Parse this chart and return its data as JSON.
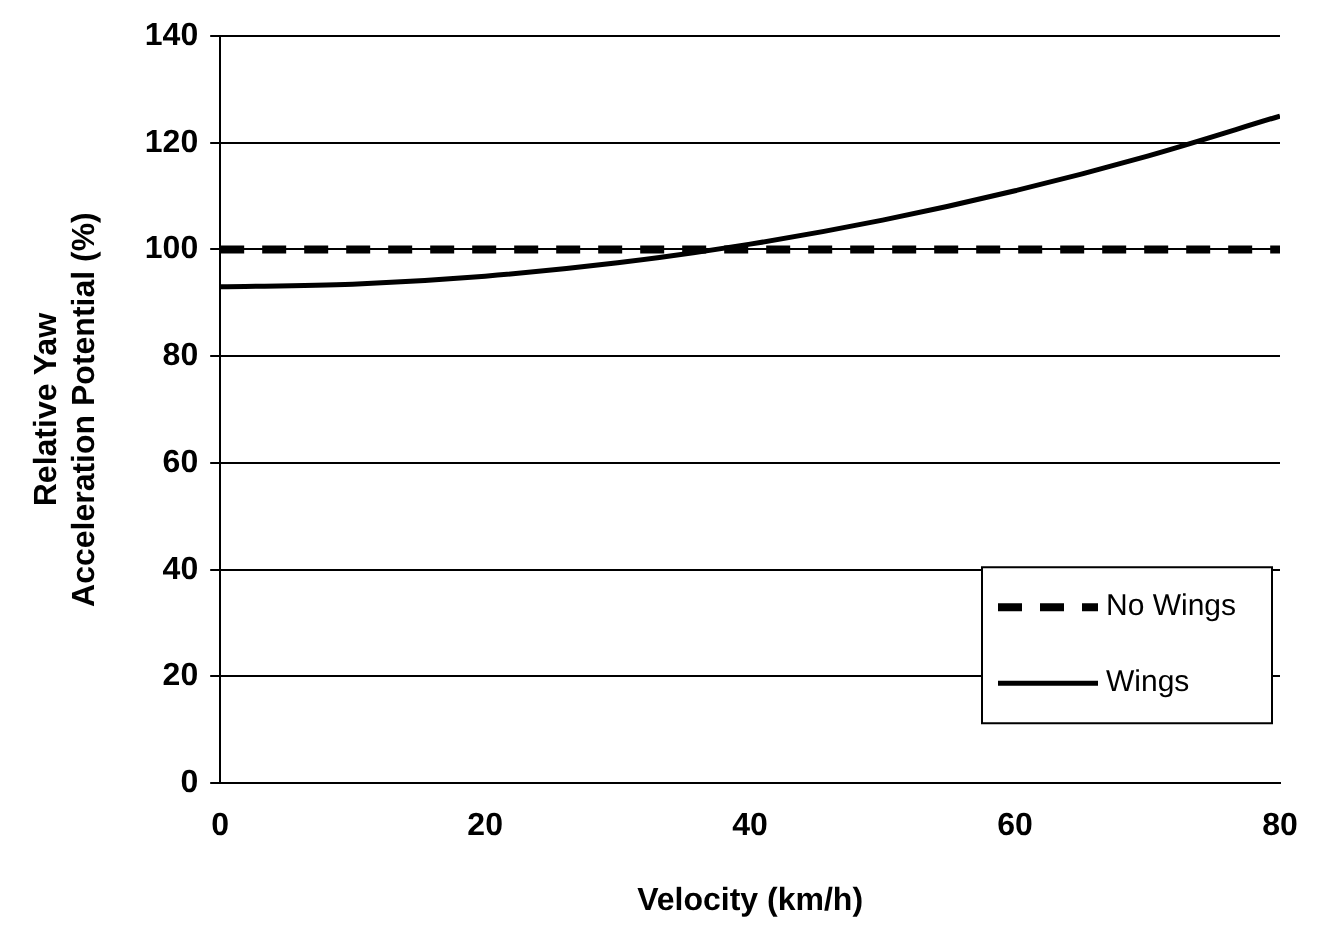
{
  "chart_data": {
    "type": "line",
    "xlabel": "Velocity (km/h)",
    "ylabel": "Relative Yaw Acceleration Potential (%)",
    "x": [
      0,
      10,
      20,
      30,
      40,
      50,
      60,
      70,
      80
    ],
    "series": [
      {
        "name": "No Wings",
        "color": "#000000",
        "line_style": "dashed",
        "values": [
          100,
          100,
          100,
          100,
          100,
          100,
          100,
          100,
          100
        ]
      },
      {
        "name": "Wings",
        "color": "#000000",
        "line_style": "solid",
        "values": [
          93,
          93.5,
          95,
          97.5,
          101,
          105.5,
          111,
          117.5,
          125
        ]
      }
    ],
    "xlim": [
      0,
      80
    ],
    "xticks": [
      0,
      20,
      40,
      60,
      80
    ],
    "ylim": [
      0,
      140
    ],
    "yticks": [
      0,
      20,
      40,
      60,
      80,
      100,
      120,
      140
    ],
    "grid": "y",
    "legend": "bottom right",
    "marker": "none"
  }
}
